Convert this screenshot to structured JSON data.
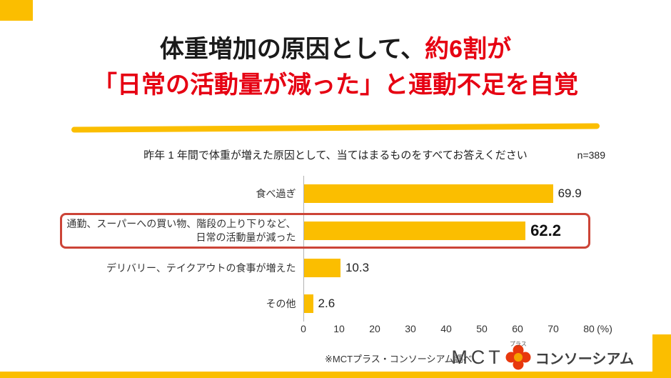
{
  "colors": {
    "accent_yellow": "#FBBE00",
    "title_red": "#E60012",
    "highlight_box_red": "#CC4437",
    "logo_red": "#E8380D",
    "logo_orange": "#F5A200"
  },
  "title": {
    "line1_black": "体重増加の原因として、",
    "line1_red": "約6割が",
    "line2_red": "「日常の活動量が減った」と運動不足を自覚"
  },
  "survey": {
    "question": "昨年 1 年間で体重が増えた原因として、当てはまるものをすべてお答えください",
    "sample_size": "n=389"
  },
  "chart_data": {
    "type": "bar",
    "orientation": "horizontal",
    "categories": [
      "食べ過ぎ",
      "通勤、スーパーへの買い物、階段の上り下りなど、\n日常の活動量が減った",
      "デリバリー、テイクアウトの食事が増えた",
      "その他"
    ],
    "values": [
      69.9,
      62.2,
      10.3,
      2.6
    ],
    "highlight_index": 1,
    "xlim": [
      0,
      80
    ],
    "x_ticks": [
      0,
      10,
      20,
      30,
      40,
      50,
      60,
      70,
      80
    ],
    "x_unit_label": "(%)",
    "bar_color": "#FBBE00",
    "grid": false,
    "legend": false
  },
  "footer": {
    "source_note": "※MCTプラス・コンソーシアム調べ",
    "logo": {
      "mct": "MCT",
      "plus": "プラス",
      "consortium": "コンソーシアム"
    }
  }
}
